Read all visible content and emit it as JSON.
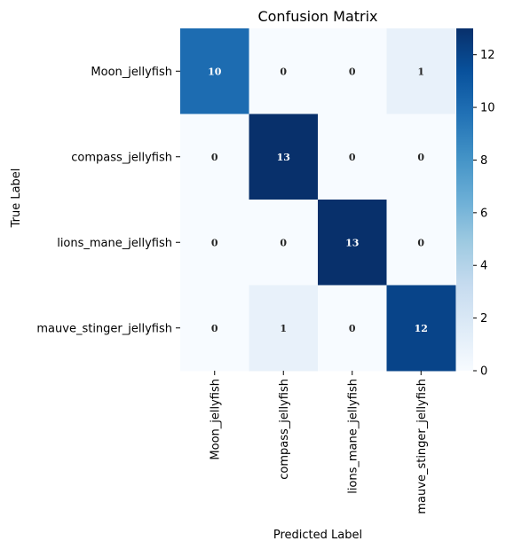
{
  "chart_data": {
    "type": "heatmap",
    "title": "Confusion Matrix",
    "xlabel": "Predicted Label",
    "ylabel": "True Label",
    "x_categories": [
      "Moon_jellyfish",
      "compass_jellyfish",
      "lions_mane_jellyfish",
      "mauve_stinger_jellyfish"
    ],
    "y_categories": [
      "Moon_jellyfish",
      "compass_jellyfish",
      "lions_mane_jellyfish",
      "mauve_stinger_jellyfish"
    ],
    "values": [
      [
        10,
        0,
        0,
        1
      ],
      [
        0,
        13,
        0,
        0
      ],
      [
        0,
        0,
        13,
        0
      ],
      [
        0,
        1,
        0,
        12
      ]
    ],
    "colormap": "Blues",
    "colorbar": {
      "range": [
        0,
        13
      ],
      "ticks": [
        0,
        2,
        4,
        6,
        8,
        10,
        12
      ]
    },
    "grid": false
  }
}
